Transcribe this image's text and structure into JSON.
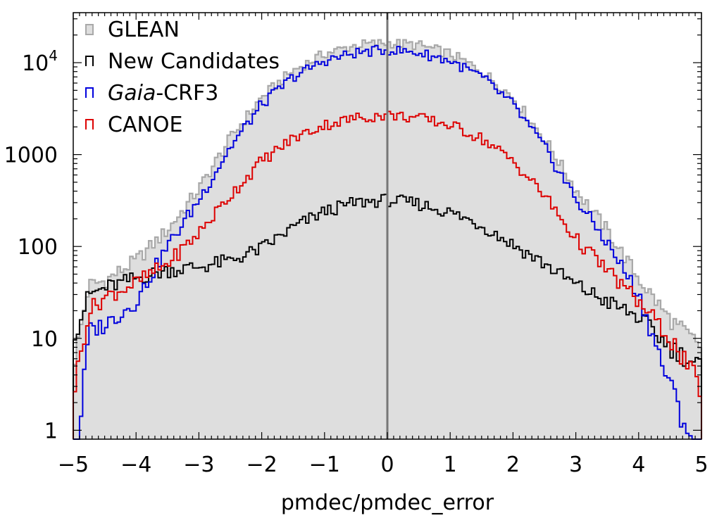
{
  "chart_data": {
    "type": "histogram",
    "xlabel": "pmdec/pmdec_error",
    "ylabel": "",
    "xlim": [
      -5,
      5
    ],
    "ylim": [
      0.8,
      35000
    ],
    "yscale": "log",
    "bin_width": 0.05,
    "x_ticks": [
      {
        "value": -5,
        "label": "−5"
      },
      {
        "value": -4,
        "label": "−4"
      },
      {
        "value": -3,
        "label": "−3"
      },
      {
        "value": -2,
        "label": "−2"
      },
      {
        "value": -1,
        "label": "−1"
      },
      {
        "value": 0,
        "label": "0"
      },
      {
        "value": 1,
        "label": "1"
      },
      {
        "value": 2,
        "label": "2"
      },
      {
        "value": 3,
        "label": "3"
      },
      {
        "value": 4,
        "label": "4"
      },
      {
        "value": 5,
        "label": "5"
      }
    ],
    "y_ticks": [
      {
        "value": 1,
        "label": "1"
      },
      {
        "value": 10,
        "label": "10"
      },
      {
        "value": 100,
        "label": "100"
      },
      {
        "value": 1000,
        "label": "1000"
      },
      {
        "value": 10000,
        "label": "10",
        "exponent": "4"
      }
    ],
    "reference_line_x": 0,
    "legend": {
      "position": "top-left",
      "entries": [
        {
          "label": "GLEAN",
          "italic_part": "",
          "series": "GLEAN"
        },
        {
          "label": "New Candidates",
          "italic_part": "",
          "series": "New Candidates"
        },
        {
          "label": "-CRF3",
          "italic_part": "Gaia",
          "series": "Gaia-CRF3"
        },
        {
          "label": "CANOE",
          "italic_part": "",
          "series": "CANOE"
        }
      ]
    },
    "series": [
      {
        "name": "GLEAN",
        "style": "filled",
        "color": "#a9a9a9",
        "fill": "#dedede",
        "points": [
          [
            -5,
            5
          ],
          [
            -4.75,
            38
          ],
          [
            -4.5,
            42
          ],
          [
            -4,
            70
          ],
          [
            -3.5,
            150
          ],
          [
            -3,
            420
          ],
          [
            -2.5,
            1500
          ],
          [
            -2,
            4200
          ],
          [
            -1.5,
            8200
          ],
          [
            -1,
            12500
          ],
          [
            -0.5,
            15500
          ],
          [
            0,
            16500
          ],
          [
            0.5,
            15500
          ],
          [
            1,
            12500
          ],
          [
            1.5,
            8200
          ],
          [
            2,
            4200
          ],
          [
            2.5,
            1500
          ],
          [
            3,
            420
          ],
          [
            3.5,
            150
          ],
          [
            4,
            45
          ],
          [
            4.5,
            16
          ],
          [
            5,
            8
          ]
        ]
      },
      {
        "name": "New Candidates",
        "style": "step",
        "color": "#000000",
        "points": [
          [
            -4.95,
            12
          ],
          [
            -4.75,
            30
          ],
          [
            -4.5,
            35
          ],
          [
            -4,
            45
          ],
          [
            -3.5,
            55
          ],
          [
            -3,
            60
          ],
          [
            -2.5,
            70
          ],
          [
            -2,
            95
          ],
          [
            -1.5,
            160
          ],
          [
            -1,
            240
          ],
          [
            -0.5,
            300
          ],
          [
            0,
            320
          ],
          [
            0.5,
            290
          ],
          [
            1,
            235
          ],
          [
            1.5,
            170
          ],
          [
            2,
            105
          ],
          [
            2.5,
            65
          ],
          [
            3,
            38
          ],
          [
            3.5,
            25
          ],
          [
            4,
            17
          ],
          [
            4.5,
            8
          ],
          [
            4.97,
            5
          ]
        ]
      },
      {
        "name": "Gaia-CRF3",
        "style": "step",
        "color": "#0000dd",
        "points": [
          [
            -4.95,
            0.5
          ],
          [
            -4.75,
            12
          ],
          [
            -4.5,
            14
          ],
          [
            -4,
            25
          ],
          [
            -3.5,
            100
          ],
          [
            -3,
            320
          ],
          [
            -2.5,
            1200
          ],
          [
            -2,
            3500
          ],
          [
            -1.5,
            7000
          ],
          [
            -1,
            10500
          ],
          [
            -0.5,
            12800
          ],
          [
            0,
            13800
          ],
          [
            0.5,
            12800
          ],
          [
            1,
            10500
          ],
          [
            1.5,
            7000
          ],
          [
            2,
            3500
          ],
          [
            2.5,
            1200
          ],
          [
            3,
            330
          ],
          [
            3.5,
            110
          ],
          [
            4,
            30
          ],
          [
            4.5,
            3
          ],
          [
            4.97,
            0.5
          ]
        ]
      },
      {
        "name": "CANOE",
        "style": "step",
        "color": "#dd0000",
        "points": [
          [
            -4.98,
            3
          ],
          [
            -4.75,
            20
          ],
          [
            -4.5,
            28
          ],
          [
            -4,
            40
          ],
          [
            -3.5,
            65
          ],
          [
            -3,
            140
          ],
          [
            -2.5,
            360
          ],
          [
            -2,
            850
          ],
          [
            -1.5,
            1500
          ],
          [
            -1,
            2100
          ],
          [
            -0.5,
            2500
          ],
          [
            0,
            2700
          ],
          [
            0.5,
            2500
          ],
          [
            1,
            2100
          ],
          [
            1.5,
            1500
          ],
          [
            2,
            850
          ],
          [
            2.5,
            360
          ],
          [
            3,
            120
          ],
          [
            3.5,
            55
          ],
          [
            4,
            25
          ],
          [
            4.5,
            10
          ],
          [
            4.97,
            3
          ]
        ]
      }
    ]
  }
}
